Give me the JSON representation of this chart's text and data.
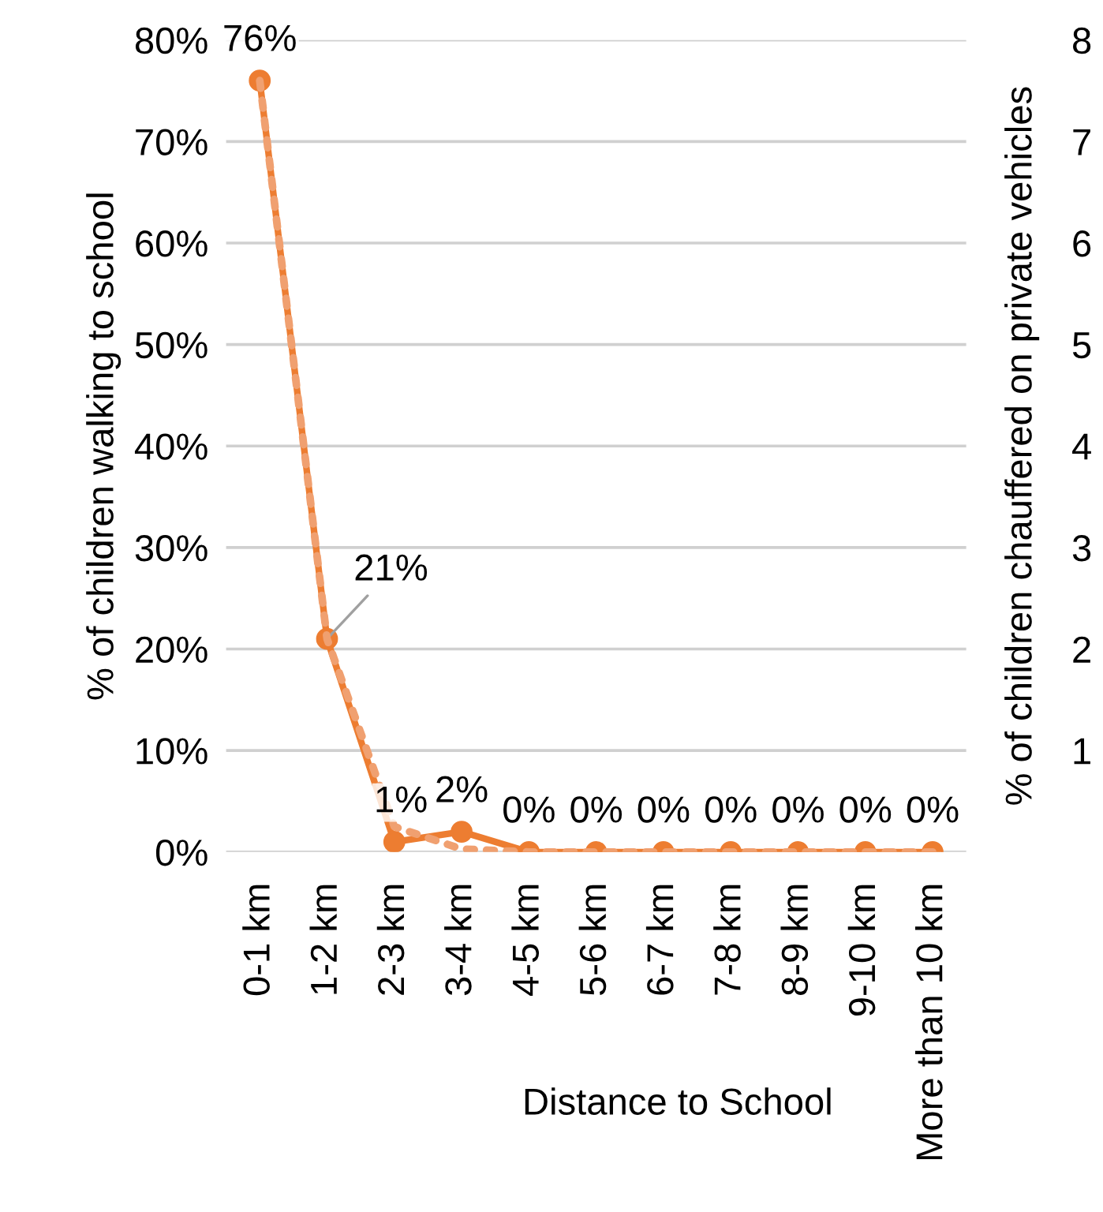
{
  "chart_data": {
    "type": "line",
    "xlabel": "Distance to School",
    "ylabel": "% of children walking to school",
    "y2label": "% of children chauffered on private vehicles",
    "categories": [
      "0-1 km",
      "1-2 km",
      "2-3 km",
      "3-4 km",
      "4-5 km",
      "5-6 km",
      "6-7 km",
      "7-8 km",
      "8-9 km",
      "9-10 km",
      "More than 10 km"
    ],
    "series": [
      {
        "color": "#ed7d31",
        "values": [
          76,
          21,
          1,
          2,
          0,
          0,
          0,
          0,
          0,
          0,
          0
        ],
        "value_labels": [
          "76%",
          "21%",
          "1%",
          "2%",
          "0%",
          "0%",
          "0%",
          "0%",
          "0%",
          "0%",
          "0%"
        ],
        "marker": "circle",
        "line_style": "solid"
      },
      {
        "color": "#f0a070",
        "axis": "y2",
        "values": [
          7.6,
          2.1,
          0.25,
          0.03,
          0,
          0,
          0,
          0,
          0,
          0,
          0
        ],
        "marker": "none",
        "line_style": "dotted"
      }
    ],
    "ylim": [
      0,
      80
    ],
    "yticks": [
      {
        "value": 0,
        "label": "0%"
      },
      {
        "value": 10,
        "label": "10%"
      },
      {
        "value": 20,
        "label": "20%"
      },
      {
        "value": 30,
        "label": "30%"
      },
      {
        "value": 40,
        "label": "40%"
      },
      {
        "value": 50,
        "label": "50%"
      },
      {
        "value": 60,
        "label": "60%"
      },
      {
        "value": 70,
        "label": "70%"
      },
      {
        "value": 80,
        "label": "80%"
      }
    ],
    "y2lim": [
      0,
      8
    ],
    "y2ticks": [
      {
        "value": 0,
        "label": null
      },
      1,
      2,
      3,
      4,
      5,
      6,
      7,
      8
    ],
    "grid": "y",
    "legend": false
  }
}
